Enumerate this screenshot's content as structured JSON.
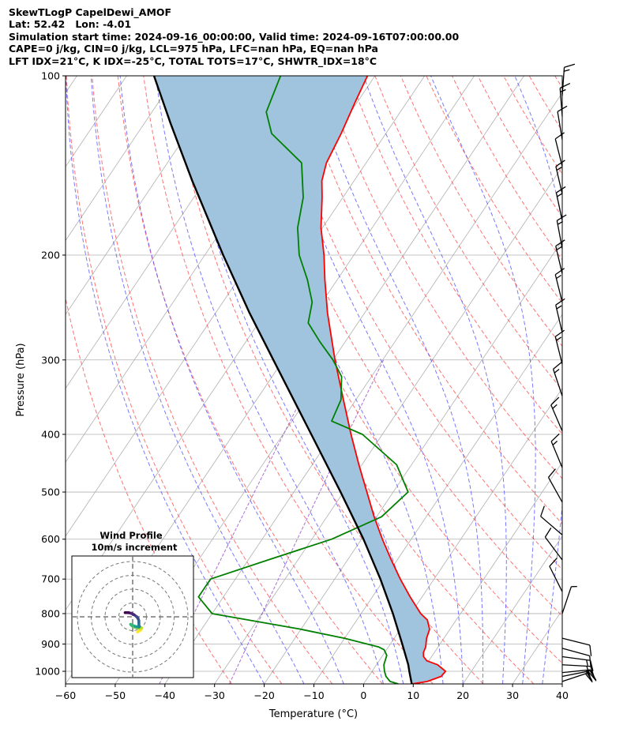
{
  "header": {
    "lines": [
      "SkewTLogP CapelDewi_AMOF",
      "Lat: 52.42   Lon: -4.01",
      "Simulation start time: 2024-09-16_00:00:00, Valid time: 2024-09-16T07:00:00.00",
      "CAPE=0 j/kg, CIN=0 j/kg, LCL=975 hPa, LFC=nan hPa, EQ=nan hPa",
      "LFT IDX=21°C, K IDX=-25°C, TOTAL TOTS=17°C, SHWTR_IDX=18°C"
    ]
  },
  "chart_data": {
    "type": "line",
    "subtype": "skew-t log-p",
    "xlabel": "Temperature (°C)",
    "ylabel": "Pressure (hPa)",
    "xlim": [
      -60,
      40
    ],
    "ylim": [
      1050,
      100
    ],
    "yscale": "log",
    "skew": 35,
    "xticks": [
      -60,
      -50,
      -40,
      -30,
      -20,
      -10,
      0,
      10,
      20,
      30,
      40
    ],
    "yticks": [
      1000,
      900,
      800,
      700,
      600,
      500,
      400,
      300,
      200,
      100
    ],
    "grid": true,
    "colors": {
      "temperature": "#ff0000",
      "dewpoint": "#008000",
      "parcel": "#000000",
      "fill": "#a0c4de",
      "dry_adiabat": "#ff4444",
      "moist_adiabat": "#4040ff",
      "mixing_ratio": "#9040c0"
    },
    "series": [
      {
        "key": "temperature",
        "pressure": [
          1050,
          1040,
          1020,
          1000,
          975,
          960,
          945,
          930,
          910,
          880,
          850,
          820,
          800,
          750,
          700,
          650,
          600,
          550,
          500,
          450,
          400,
          350,
          300,
          250,
          220,
          200,
          180,
          160,
          150,
          140,
          125,
          110,
          100
        ],
        "temp": [
          9.7,
          12.5,
          14.6,
          14.8,
          12.3,
          9.6,
          8.4,
          7.8,
          7.5,
          6.5,
          5.9,
          4.2,
          2.0,
          -2.4,
          -6.8,
          -11.2,
          -15.8,
          -20.5,
          -25.3,
          -30.6,
          -36.3,
          -42.5,
          -49.6,
          -57.5,
          -62.5,
          -66.0,
          -70.3,
          -74.2,
          -76.5,
          -78.0,
          -79.0,
          -80.5,
          -81.5
        ]
      },
      {
        "key": "dewpoint",
        "pressure": [
          1050,
          1040,
          1020,
          1000,
          975,
          960,
          940,
          920,
          910,
          880,
          850,
          800,
          750,
          700,
          650,
          600,
          550,
          500,
          450,
          400,
          380,
          350,
          320,
          300,
          280,
          260,
          240,
          220,
          200,
          180,
          160,
          140,
          125,
          115,
          100
        ],
        "dewpt": [
          7.0,
          5.0,
          3.5,
          2.5,
          1.5,
          1.2,
          0.8,
          -0.5,
          -2.0,
          -10.0,
          -20.0,
          -40.0,
          -45.0,
          -45.0,
          -36.0,
          -26.0,
          -19.0,
          -17.0,
          -23.0,
          -34.0,
          -42.0,
          -43.0,
          -46.0,
          -50.0,
          -55.0,
          -60.0,
          -62.0,
          -66.0,
          -71.0,
          -75.0,
          -78.0,
          -83.0,
          -93.0,
          -97.0,
          -99.0
        ]
      },
      {
        "key": "parcel",
        "pressure": [
          1050,
          1000,
          975,
          900,
          800,
          700,
          600,
          500,
          400,
          300,
          250,
          200,
          150,
          120,
          100
        ],
        "temp": [
          9.7,
          7.5,
          6.4,
          2.4,
          -3.6,
          -10.8,
          -19.6,
          -30.6,
          -44.3,
          -62.0,
          -73.2,
          -86.3,
          -102.6,
          -114.8,
          -124.5
        ]
      }
    ],
    "winds": [
      {
        "p": 1040,
        "u": -18,
        "v": -6
      },
      {
        "p": 1020,
        "u": -20,
        "v": -4
      },
      {
        "p": 1005,
        "u": -20,
        "v": -2
      },
      {
        "p": 975,
        "u": -18,
        "v": 1
      },
      {
        "p": 945,
        "u": -15,
        "v": 2
      },
      {
        "p": 915,
        "u": -11,
        "v": 3
      },
      {
        "p": 880,
        "u": -8,
        "v": 2
      },
      {
        "p": 800,
        "u": -2,
        "v": -6
      },
      {
        "p": 735,
        "u": 4,
        "v": -8
      },
      {
        "p": 650,
        "u": 6,
        "v": -8
      },
      {
        "p": 590,
        "u": 7,
        "v": -6
      },
      {
        "p": 520,
        "u": 5,
        "v": -9
      },
      {
        "p": 455,
        "u": 5,
        "v": -12
      },
      {
        "p": 395,
        "u": 6,
        "v": -14
      },
      {
        "p": 345,
        "u": 5,
        "v": -15
      },
      {
        "p": 305,
        "u": 4,
        "v": -16
      },
      {
        "p": 270,
        "u": 4,
        "v": -17
      },
      {
        "p": 240,
        "u": 4,
        "v": -16
      },
      {
        "p": 215,
        "u": 4,
        "v": -17
      },
      {
        "p": 195,
        "u": 3,
        "v": -16
      },
      {
        "p": 175,
        "u": 3,
        "v": -14
      },
      {
        "p": 158,
        "u": 3,
        "v": -13
      },
      {
        "p": 142,
        "u": 3,
        "v": -12
      },
      {
        "p": 128,
        "u": 2,
        "v": -12
      },
      {
        "p": 117,
        "u": 1,
        "v": -13
      },
      {
        "p": 108,
        "u": -1,
        "v": -14
      }
    ],
    "hodograph": {
      "title": "Wind Profile",
      "subtitle": "10m/s increment",
      "rings": [
        10,
        20,
        30,
        40
      ],
      "points": [
        [
          3.5,
          -11
        ],
        [
          6,
          -9.5
        ],
        [
          6.5,
          -8
        ],
        [
          5,
          -8.5
        ],
        [
          3,
          -8
        ],
        [
          1.5,
          -7.5
        ],
        [
          -0.5,
          -6.5
        ],
        [
          -1.5,
          -5.5
        ],
        [
          2,
          -7
        ],
        [
          4.5,
          -7.5
        ],
        [
          5,
          -7
        ],
        [
          4.5,
          -6
        ],
        [
          4.5,
          -4.5
        ],
        [
          4.5,
          -3
        ],
        [
          4,
          -1.5
        ],
        [
          3,
          0
        ],
        [
          1,
          1.5
        ],
        [
          -1,
          2.5
        ],
        [
          -3,
          3
        ],
        [
          -5.5,
          3
        ]
      ]
    }
  }
}
